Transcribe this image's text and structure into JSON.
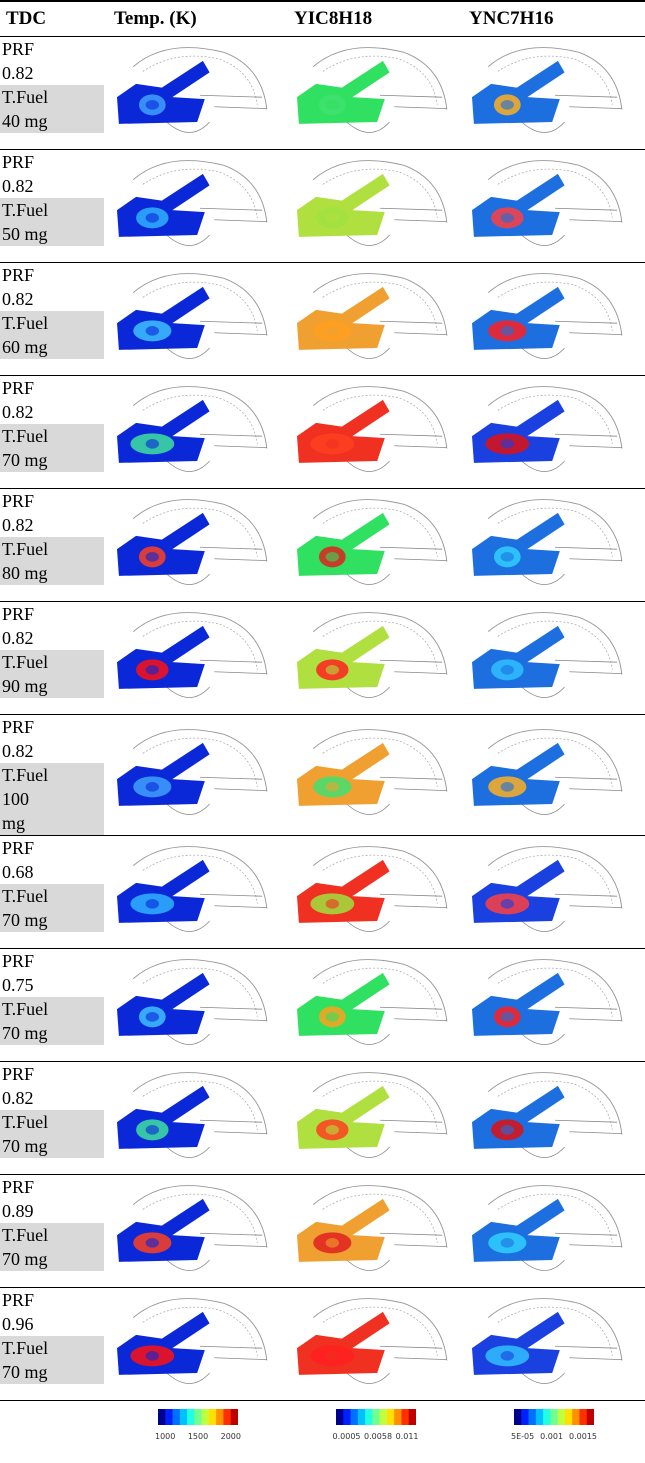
{
  "header": [
    "TDC",
    "Temp. (K)",
    "YIC8H18",
    "YNC7H16"
  ],
  "rows": [
    {
      "prf_label": "PRF",
      "prf": "0.82",
      "fuel_label": "T.Fuel",
      "fuel": "40 mg"
    },
    {
      "prf_label": "PRF",
      "prf": "0.82",
      "fuel_label": "T.Fuel",
      "fuel": "50 mg"
    },
    {
      "prf_label": "PRF",
      "prf": "0.82",
      "fuel_label": "T.Fuel",
      "fuel": "60 mg"
    },
    {
      "prf_label": "PRF",
      "prf": "0.82",
      "fuel_label": "T.Fuel",
      "fuel": "70 mg"
    },
    {
      "prf_label": "PRF",
      "prf": "0.82",
      "fuel_label": "T.Fuel",
      "fuel": "80 mg"
    },
    {
      "prf_label": "PRF",
      "prf": "0.82",
      "fuel_label": "T.Fuel",
      "fuel": "90 mg"
    },
    {
      "prf_label": "PRF",
      "prf": "0.82",
      "fuel_label": "T.Fuel",
      "fuel": "100 mg"
    },
    {
      "prf_label": "PRF",
      "prf": "0.68",
      "fuel_label": "T.Fuel",
      "fuel": "70 mg"
    },
    {
      "prf_label": "PRF",
      "prf": "0.75",
      "fuel_label": "T.Fuel",
      "fuel": "70 mg"
    },
    {
      "prf_label": "PRF",
      "prf": "0.82",
      "fuel_label": "T.Fuel",
      "fuel": "70 mg"
    },
    {
      "prf_label": "PRF",
      "prf": "0.89",
      "fuel_label": "T.Fuel",
      "fuel": "70 mg"
    },
    {
      "prf_label": "PRF",
      "prf": "0.96",
      "fuel_label": "T.Fuel",
      "fuel": "70 mg"
    }
  ],
  "colorbars": [
    [
      "1000",
      "1500",
      "2000"
    ],
    [
      "0.0005",
      "0.0058",
      "0.011"
    ],
    [
      "5E-05",
      "0.001",
      "0.0015"
    ]
  ]
}
